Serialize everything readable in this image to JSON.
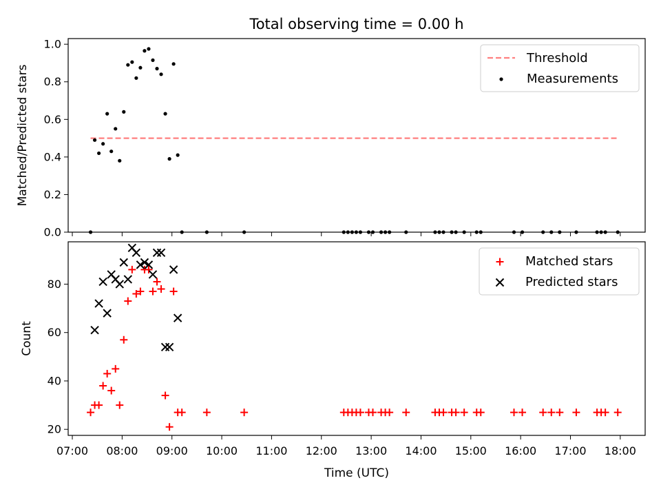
{
  "chart_data": [
    {
      "type": "scatter",
      "title": "Total observing time = 0.00 h",
      "xlabel": "",
      "ylabel": "Matched/Predicted stars",
      "ylim": [
        0,
        1.03
      ],
      "yticks": [
        "0.0",
        "0.2",
        "0.4",
        "0.6",
        "0.8",
        "1.0"
      ],
      "legend_position": "top-right",
      "series": [
        {
          "name": "Threshold",
          "kind": "dashed-line",
          "color": "#ff7f7f",
          "points": [
            [
              "07:22",
              0.5
            ],
            [
              "17:57",
              0.5
            ]
          ]
        },
        {
          "name": "Measurements",
          "kind": "dots",
          "color": "#000000",
          "points": [
            [
              "07:22",
              0.0
            ],
            [
              "07:27",
              0.49
            ],
            [
              "07:32",
              0.42
            ],
            [
              "07:37",
              0.47
            ],
            [
              "07:42",
              0.63
            ],
            [
              "07:47",
              0.43
            ],
            [
              "07:52",
              0.55
            ],
            [
              "07:57",
              0.38
            ],
            [
              "08:02",
              0.64
            ],
            [
              "08:07",
              0.89
            ],
            [
              "08:12",
              0.905
            ],
            [
              "08:17",
              0.82
            ],
            [
              "08:22",
              0.875
            ],
            [
              "08:27",
              0.965
            ],
            [
              "08:32",
              0.975
            ],
            [
              "08:37",
              0.915
            ],
            [
              "08:42",
              0.87
            ],
            [
              "08:47",
              0.84
            ],
            [
              "08:52",
              0.63
            ],
            [
              "08:57",
              0.39
            ],
            [
              "09:02",
              0.895
            ],
            [
              "09:07",
              0.41
            ],
            [
              "09:12",
              0.0
            ],
            [
              "09:42",
              0.0
            ],
            [
              "10:27",
              0.0
            ],
            [
              "12:27",
              0.0
            ],
            [
              "12:32",
              0.0
            ],
            [
              "12:37",
              0.0
            ],
            [
              "12:42",
              0.0
            ],
            [
              "12:47",
              0.0
            ],
            [
              "12:57",
              0.0
            ],
            [
              "13:02",
              0.0
            ],
            [
              "13:12",
              0.0
            ],
            [
              "13:17",
              0.0
            ],
            [
              "13:22",
              0.0
            ],
            [
              "13:42",
              0.0
            ],
            [
              "14:17",
              0.0
            ],
            [
              "14:22",
              0.0
            ],
            [
              "14:27",
              0.0
            ],
            [
              "14:37",
              0.0
            ],
            [
              "14:42",
              0.0
            ],
            [
              "14:52",
              0.0
            ],
            [
              "15:07",
              0.0
            ],
            [
              "15:12",
              0.0
            ],
            [
              "15:52",
              0.0
            ],
            [
              "16:02",
              0.0
            ],
            [
              "16:27",
              0.0
            ],
            [
              "16:37",
              0.0
            ],
            [
              "16:47",
              0.0
            ],
            [
              "17:07",
              0.0
            ],
            [
              "17:32",
              0.0
            ],
            [
              "17:37",
              0.0
            ],
            [
              "17:42",
              0.0
            ],
            [
              "17:57",
              0.0
            ]
          ]
        }
      ]
    },
    {
      "type": "scatter",
      "title": "",
      "xlabel": "Time (UTC)",
      "ylabel": "Count",
      "ylim": [
        17.5,
        97.5
      ],
      "yticks": [
        "20",
        "40",
        "60",
        "80"
      ],
      "xticks": [
        "07:00",
        "08:00",
        "09:00",
        "10:00",
        "11:00",
        "12:00",
        "13:00",
        "14:00",
        "15:00",
        "16:00",
        "17:00",
        "18:00"
      ],
      "xlim": [
        "06:55",
        "18:30"
      ],
      "legend_position": "top-right",
      "series": [
        {
          "name": "Matched stars",
          "kind": "plus",
          "color": "#ff0000",
          "points": [
            [
              "07:22",
              27
            ],
            [
              "07:27",
              30
            ],
            [
              "07:32",
              30
            ],
            [
              "07:37",
              38
            ],
            [
              "07:42",
              43
            ],
            [
              "07:47",
              36
            ],
            [
              "07:52",
              45
            ],
            [
              "07:57",
              30
            ],
            [
              "08:02",
              57
            ],
            [
              "08:07",
              73
            ],
            [
              "08:12",
              86
            ],
            [
              "08:17",
              76
            ],
            [
              "08:22",
              77
            ],
            [
              "08:27",
              86
            ],
            [
              "08:32",
              86
            ],
            [
              "08:37",
              77
            ],
            [
              "08:42",
              81
            ],
            [
              "08:47",
              78
            ],
            [
              "08:52",
              34
            ],
            [
              "08:57",
              21
            ],
            [
              "09:02",
              77
            ],
            [
              "09:07",
              27
            ],
            [
              "09:12",
              27
            ],
            [
              "09:42",
              27
            ],
            [
              "10:27",
              27
            ],
            [
              "12:27",
              27
            ],
            [
              "12:32",
              27
            ],
            [
              "12:37",
              27
            ],
            [
              "12:42",
              27
            ],
            [
              "12:47",
              27
            ],
            [
              "12:57",
              27
            ],
            [
              "13:02",
              27
            ],
            [
              "13:12",
              27
            ],
            [
              "13:17",
              27
            ],
            [
              "13:22",
              27
            ],
            [
              "13:42",
              27
            ],
            [
              "14:17",
              27
            ],
            [
              "14:22",
              27
            ],
            [
              "14:27",
              27
            ],
            [
              "14:37",
              27
            ],
            [
              "14:42",
              27
            ],
            [
              "14:52",
              27
            ],
            [
              "15:07",
              27
            ],
            [
              "15:12",
              27
            ],
            [
              "15:52",
              27
            ],
            [
              "16:02",
              27
            ],
            [
              "16:27",
              27
            ],
            [
              "16:37",
              27
            ],
            [
              "16:47",
              27
            ],
            [
              "17:07",
              27
            ],
            [
              "17:32",
              27
            ],
            [
              "17:37",
              27
            ],
            [
              "17:42",
              27
            ],
            [
              "17:57",
              27
            ]
          ]
        },
        {
          "name": "Predicted stars",
          "kind": "x",
          "color": "#000000",
          "points": [
            [
              "07:27",
              61
            ],
            [
              "07:32",
              72
            ],
            [
              "07:37",
              81
            ],
            [
              "07:42",
              68
            ],
            [
              "07:47",
              84
            ],
            [
              "07:52",
              82
            ],
            [
              "07:57",
              80
            ],
            [
              "08:02",
              89
            ],
            [
              "08:07",
              82
            ],
            [
              "08:12",
              95
            ],
            [
              "08:17",
              93
            ],
            [
              "08:22",
              88
            ],
            [
              "08:27",
              89
            ],
            [
              "08:32",
              88
            ],
            [
              "08:37",
              84
            ],
            [
              "08:42",
              93
            ],
            [
              "08:47",
              93
            ],
            [
              "08:52",
              54
            ],
            [
              "08:57",
              54
            ],
            [
              "09:02",
              86
            ],
            [
              "09:07",
              66
            ]
          ]
        }
      ]
    }
  ]
}
